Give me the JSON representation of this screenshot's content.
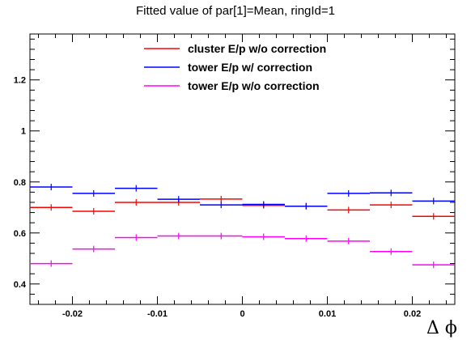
{
  "chart_data": {
    "type": "scatter",
    "title": "Fitted value of par[1]=Mean, ringId=1",
    "xlabel": "Δ ϕ",
    "ylabel": "",
    "xlim": [
      -0.025,
      0.025
    ],
    "ylim": [
      0.32,
      1.38
    ],
    "bin_width": 0.005,
    "x": [
      -0.0225,
      -0.0175,
      -0.0125,
      -0.0075,
      -0.0025,
      0.0025,
      0.0075,
      0.0125,
      0.0175,
      0.0225
    ],
    "x_ticks": [
      -0.02,
      -0.01,
      0,
      0.01,
      0.02
    ],
    "x_tick_labels": [
      "-0.02",
      "-0.01",
      "0",
      "0.01",
      "0.02"
    ],
    "y_ticks": [
      0.4,
      0.6,
      0.8,
      1,
      1.2
    ],
    "y_tick_labels": [
      "0.4",
      "0.6",
      "0.8",
      "1",
      "1.2"
    ],
    "legend_position": "top",
    "grid": false,
    "series": [
      {
        "name": "cluster E/p w/o correction",
        "color": "#ff0000",
        "values": [
          0.7,
          0.685,
          0.72,
          0.72,
          0.733,
          0.708,
          0.705,
          0.69,
          0.71,
          0.665
        ]
      },
      {
        "name": "tower E/p w/ correction",
        "color": "#0000ff",
        "values": [
          0.78,
          0.755,
          0.775,
          0.732,
          0.71,
          0.712,
          0.705,
          0.755,
          0.757,
          0.725
        ]
      },
      {
        "name": "tower E/p w/o correction",
        "color": "#ff00ff",
        "values": [
          0.48,
          0.537,
          0.582,
          0.588,
          0.588,
          0.585,
          0.578,
          0.568,
          0.527,
          0.475
        ]
      }
    ]
  }
}
